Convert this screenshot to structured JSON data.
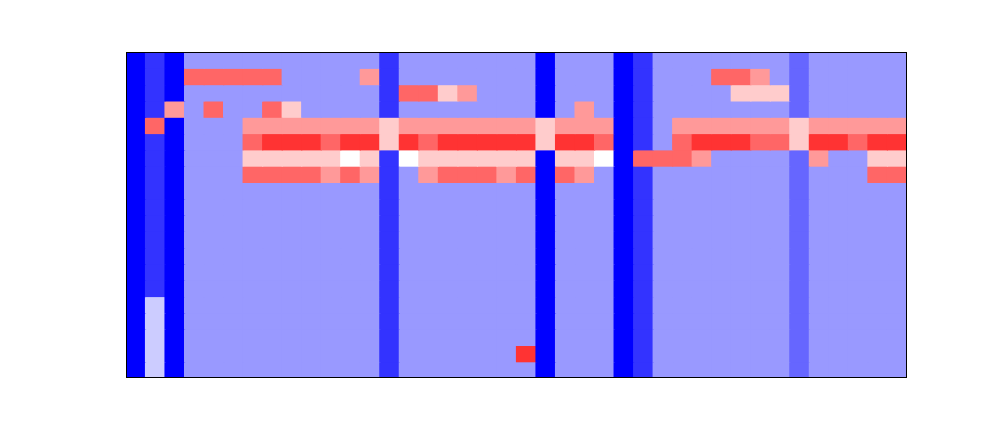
{
  "chart_data": {
    "type": "heatmap",
    "color": "bwr",
    "zlim": [
      0,
      10
    ],
    "tick_labels": false,
    "cells": [
      [
        0,
        1,
        0,
        3,
        3,
        3,
        3,
        3,
        3,
        3,
        3,
        3,
        3,
        1,
        3,
        3,
        3,
        3,
        3,
        3,
        3,
        0,
        3,
        3,
        3,
        0,
        1,
        3,
        3,
        3,
        3,
        3,
        3,
        3,
        2,
        3,
        3,
        3,
        3,
        3
      ],
      [
        0,
        1,
        0,
        8,
        8,
        8,
        8,
        8,
        3,
        3,
        3,
        3,
        7,
        1,
        3,
        3,
        3,
        3,
        3,
        3,
        3,
        0,
        3,
        3,
        3,
        0,
        1,
        3,
        3,
        3,
        8,
        8,
        7,
        3,
        2,
        3,
        3,
        3,
        3,
        3
      ],
      [
        0,
        1,
        0,
        3,
        3,
        3,
        3,
        3,
        3,
        3,
        3,
        3,
        3,
        1,
        8,
        8,
        6,
        7,
        3,
        3,
        3,
        0,
        3,
        3,
        3,
        0,
        1,
        3,
        3,
        3,
        3,
        6,
        6,
        6,
        2,
        3,
        3,
        3,
        3,
        3
      ],
      [
        0,
        1,
        7,
        3,
        8,
        3,
        3,
        8,
        6,
        3,
        3,
        3,
        3,
        1,
        3,
        3,
        3,
        3,
        3,
        3,
        3,
        0,
        3,
        7,
        3,
        0,
        1,
        3,
        3,
        3,
        3,
        3,
        3,
        3,
        2,
        3,
        3,
        3,
        3,
        3
      ],
      [
        0,
        8,
        0,
        3,
        3,
        3,
        7,
        7,
        7,
        7,
        7,
        7,
        7,
        6,
        7,
        7,
        7,
        7,
        7,
        7,
        7,
        6,
        7,
        7,
        7,
        0,
        1,
        3,
        7,
        7,
        7,
        7,
        7,
        7,
        6,
        7,
        7,
        7,
        7,
        7
      ],
      [
        0,
        1,
        0,
        3,
        3,
        3,
        8,
        9,
        9,
        9,
        8,
        9,
        9,
        6,
        9,
        8,
        9,
        9,
        9,
        9,
        9,
        6,
        9,
        9,
        8,
        0,
        1,
        3,
        8,
        9,
        9,
        9,
        8,
        8,
        6,
        9,
        9,
        8,
        9,
        9
      ],
      [
        0,
        1,
        0,
        3,
        3,
        3,
        6,
        6,
        6,
        6,
        6,
        5,
        6,
        1,
        5,
        6,
        6,
        6,
        6,
        6,
        6,
        0,
        6,
        6,
        5,
        0,
        8,
        8,
        8,
        7,
        3,
        3,
        3,
        3,
        2,
        7,
        3,
        3,
        6,
        6
      ],
      [
        0,
        1,
        0,
        3,
        3,
        3,
        8,
        8,
        8,
        8,
        7,
        8,
        7,
        1,
        3,
        7,
        8,
        8,
        8,
        7,
        8,
        0,
        8,
        7,
        3,
        0,
        1,
        3,
        3,
        3,
        3,
        3,
        3,
        3,
        2,
        3,
        3,
        3,
        8,
        8
      ],
      [
        0,
        1,
        0,
        3,
        3,
        3,
        3,
        3,
        3,
        3,
        3,
        3,
        3,
        1,
        3,
        3,
        3,
        3,
        3,
        3,
        3,
        0,
        3,
        3,
        3,
        0,
        1,
        3,
        3,
        3,
        3,
        3,
        3,
        3,
        2,
        3,
        3,
        3,
        3,
        3
      ],
      [
        0,
        1,
        0,
        3,
        3,
        3,
        3,
        3,
        3,
        3,
        3,
        3,
        3,
        1,
        3,
        3,
        3,
        3,
        3,
        3,
        3,
        0,
        3,
        3,
        3,
        0,
        1,
        3,
        3,
        3,
        3,
        3,
        3,
        3,
        2,
        3,
        3,
        3,
        3,
        3
      ],
      [
        0,
        1,
        0,
        3,
        3,
        3,
        3,
        3,
        3,
        3,
        3,
        3,
        3,
        1,
        3,
        3,
        3,
        3,
        3,
        3,
        3,
        0,
        3,
        3,
        3,
        0,
        1,
        3,
        3,
        3,
        3,
        3,
        3,
        3,
        2,
        3,
        3,
        3,
        3,
        3
      ],
      [
        0,
        1,
        0,
        3,
        3,
        3,
        3,
        3,
        3,
        3,
        3,
        3,
        3,
        1,
        3,
        3,
        3,
        3,
        3,
        3,
        3,
        0,
        3,
        3,
        3,
        0,
        1,
        3,
        3,
        3,
        3,
        3,
        3,
        3,
        2,
        3,
        3,
        3,
        3,
        3
      ],
      [
        0,
        1,
        0,
        3,
        3,
        3,
        3,
        3,
        3,
        3,
        3,
        3,
        3,
        1,
        3,
        3,
        3,
        3,
        3,
        3,
        3,
        0,
        3,
        3,
        3,
        0,
        1,
        3,
        3,
        3,
        3,
        3,
        3,
        3,
        2,
        3,
        3,
        3,
        3,
        3
      ],
      [
        0,
        1,
        0,
        3,
        3,
        3,
        3,
        3,
        3,
        3,
        3,
        3,
        3,
        1,
        3,
        3,
        3,
        3,
        3,
        3,
        3,
        0,
        3,
        3,
        3,
        0,
        1,
        3,
        3,
        3,
        3,
        3,
        3,
        3,
        2,
        3,
        3,
        3,
        3,
        3
      ],
      [
        0,
        1,
        0,
        3,
        3,
        3,
        3,
        3,
        3,
        3,
        3,
        3,
        3,
        1,
        3,
        3,
        3,
        3,
        3,
        3,
        3,
        0,
        3,
        3,
        3,
        0,
        1,
        3,
        3,
        3,
        3,
        3,
        3,
        3,
        2,
        3,
        3,
        3,
        3,
        3
      ],
      [
        0,
        4,
        0,
        3,
        3,
        3,
        3,
        3,
        3,
        3,
        3,
        3,
        3,
        1,
        3,
        3,
        3,
        3,
        3,
        3,
        3,
        0,
        3,
        3,
        3,
        0,
        1,
        3,
        3,
        3,
        3,
        3,
        3,
        3,
        2,
        3,
        3,
        3,
        3,
        3
      ],
      [
        0,
        4,
        0,
        3,
        3,
        3,
        3,
        3,
        3,
        3,
        3,
        3,
        3,
        1,
        3,
        3,
        3,
        3,
        3,
        3,
        3,
        0,
        3,
        3,
        3,
        0,
        1,
        3,
        3,
        3,
        3,
        3,
        3,
        3,
        2,
        3,
        3,
        3,
        3,
        3
      ],
      [
        0,
        4,
        0,
        3,
        3,
        3,
        3,
        3,
        3,
        3,
        3,
        3,
        3,
        1,
        3,
        3,
        3,
        3,
        3,
        3,
        3,
        0,
        3,
        3,
        3,
        0,
        1,
        3,
        3,
        3,
        3,
        3,
        3,
        3,
        2,
        3,
        3,
        3,
        3,
        3
      ],
      [
        0,
        4,
        0,
        3,
        3,
        3,
        3,
        3,
        3,
        3,
        3,
        3,
        3,
        1,
        3,
        3,
        3,
        3,
        3,
        3,
        9,
        0,
        3,
        3,
        3,
        0,
        1,
        3,
        3,
        3,
        3,
        3,
        3,
        3,
        2,
        3,
        3,
        3,
        3,
        3
      ],
      [
        0,
        4,
        0,
        3,
        3,
        3,
        3,
        3,
        3,
        3,
        3,
        3,
        3,
        1,
        3,
        3,
        3,
        3,
        3,
        3,
        3,
        0,
        3,
        3,
        3,
        0,
        1,
        3,
        3,
        3,
        3,
        3,
        3,
        3,
        2,
        3,
        3,
        3,
        3,
        3
      ]
    ]
  }
}
